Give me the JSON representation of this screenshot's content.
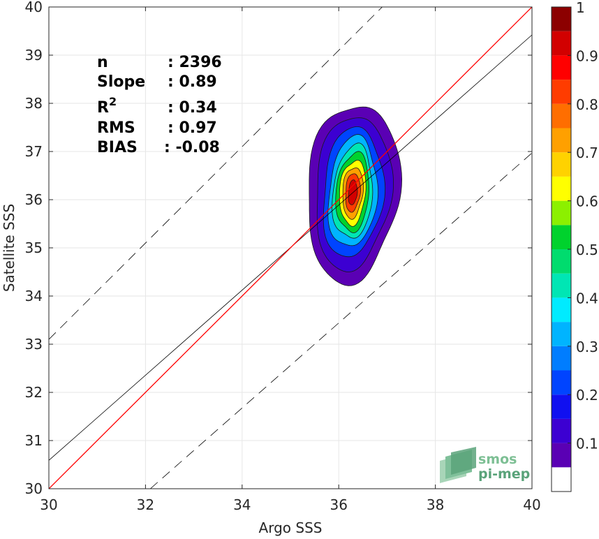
{
  "chart_data": {
    "type": "contour-density",
    "xlabel": "Argo SSS",
    "ylabel": "Satellite SSS",
    "xlim": [
      30,
      40
    ],
    "ylim": [
      30,
      40
    ],
    "x_ticks": [
      30,
      32,
      34,
      36,
      38,
      40
    ],
    "y_ticks": [
      30,
      31,
      32,
      33,
      34,
      35,
      36,
      37,
      38,
      39,
      40
    ],
    "grid": true,
    "stats": [
      {
        "label": "n",
        "value": ": 2396"
      },
      {
        "label": "Slope",
        "value": ": 0.89"
      },
      {
        "label": "R",
        "sup": "2",
        "value": ": 0.34"
      },
      {
        "label": "RMS",
        "value": ": 0.97"
      },
      {
        "label": "BIAS",
        "value": ": -0.08"
      }
    ],
    "lines": {
      "identity": {
        "x": [
          30,
          40
        ],
        "y": [
          30,
          40
        ],
        "color": "#ff0000"
      },
      "fit": {
        "x": [
          30,
          40
        ],
        "y": [
          30.59,
          39.42
        ],
        "color": "#000000"
      },
      "upper_bound": {
        "x": [
          30,
          40
        ],
        "y": [
          33.1,
          43.1
        ],
        "color": "#000000",
        "dash": true
      },
      "lower_bound": {
        "x": [
          32.1,
          40
        ],
        "y": [
          30,
          36.97
        ],
        "color": "#000000",
        "dash": true
      }
    },
    "density_contours": {
      "center": [
        36.29,
        36.15
      ],
      "levels": [
        {
          "level": 0.05,
          "rx": 0.95,
          "ry": 1.85
        },
        {
          "level": 0.1,
          "rx": 0.78,
          "ry": 1.6
        },
        {
          "level": 0.2,
          "rx": 0.62,
          "ry": 1.35
        },
        {
          "level": 0.3,
          "rx": 0.5,
          "ry": 1.15
        },
        {
          "level": 0.4,
          "rx": 0.41,
          "ry": 0.97
        },
        {
          "level": 0.5,
          "rx": 0.34,
          "ry": 0.82
        },
        {
          "level": 0.6,
          "rx": 0.27,
          "ry": 0.67
        },
        {
          "level": 0.7,
          "rx": 0.21,
          "ry": 0.53
        },
        {
          "level": 0.8,
          "rx": 0.15,
          "ry": 0.4
        },
        {
          "level": 0.9,
          "rx": 0.09,
          "ry": 0.26
        }
      ]
    },
    "colorbar": {
      "tick_labels": [
        "0.1",
        "0.2",
        "0.3",
        "0.4",
        "0.5",
        "0.6",
        "0.7",
        "0.8",
        "0.9",
        "1"
      ],
      "tick_values": [
        0.1,
        0.2,
        0.3,
        0.4,
        0.5,
        0.6,
        0.7,
        0.8,
        0.9,
        1.0
      ],
      "segments": [
        {
          "from": 0.0,
          "to": 0.05,
          "color": "#ffffff"
        },
        {
          "from": 0.05,
          "to": 0.1,
          "color": "#5a00b4"
        },
        {
          "from": 0.1,
          "to": 0.15,
          "color": "#3c00d2"
        },
        {
          "from": 0.15,
          "to": 0.2,
          "color": "#1010f0"
        },
        {
          "from": 0.2,
          "to": 0.25,
          "color": "#0044ff"
        },
        {
          "from": 0.25,
          "to": 0.3,
          "color": "#007dff"
        },
        {
          "from": 0.3,
          "to": 0.35,
          "color": "#00b4ff"
        },
        {
          "from": 0.35,
          "to": 0.4,
          "color": "#00ebff"
        },
        {
          "from": 0.4,
          "to": 0.45,
          "color": "#00e6b4"
        },
        {
          "from": 0.45,
          "to": 0.5,
          "color": "#00dc6e"
        },
        {
          "from": 0.5,
          "to": 0.55,
          "color": "#00d22d"
        },
        {
          "from": 0.55,
          "to": 0.6,
          "color": "#8cf000"
        },
        {
          "from": 0.6,
          "to": 0.65,
          "color": "#ffff00"
        },
        {
          "from": 0.65,
          "to": 0.7,
          "color": "#ffd200"
        },
        {
          "from": 0.7,
          "to": 0.75,
          "color": "#ffa000"
        },
        {
          "from": 0.75,
          "to": 0.8,
          "color": "#ff6e00"
        },
        {
          "from": 0.8,
          "to": 0.85,
          "color": "#ff3c00"
        },
        {
          "from": 0.85,
          "to": 0.9,
          "color": "#ff0000"
        },
        {
          "from": 0.9,
          "to": 0.95,
          "color": "#d20000"
        },
        {
          "from": 0.95,
          "to": 1.0,
          "color": "#8c0000"
        }
      ]
    }
  },
  "watermark": {
    "line1": "smos",
    "line2": "pi-mep",
    "color": "#5aa37a"
  }
}
